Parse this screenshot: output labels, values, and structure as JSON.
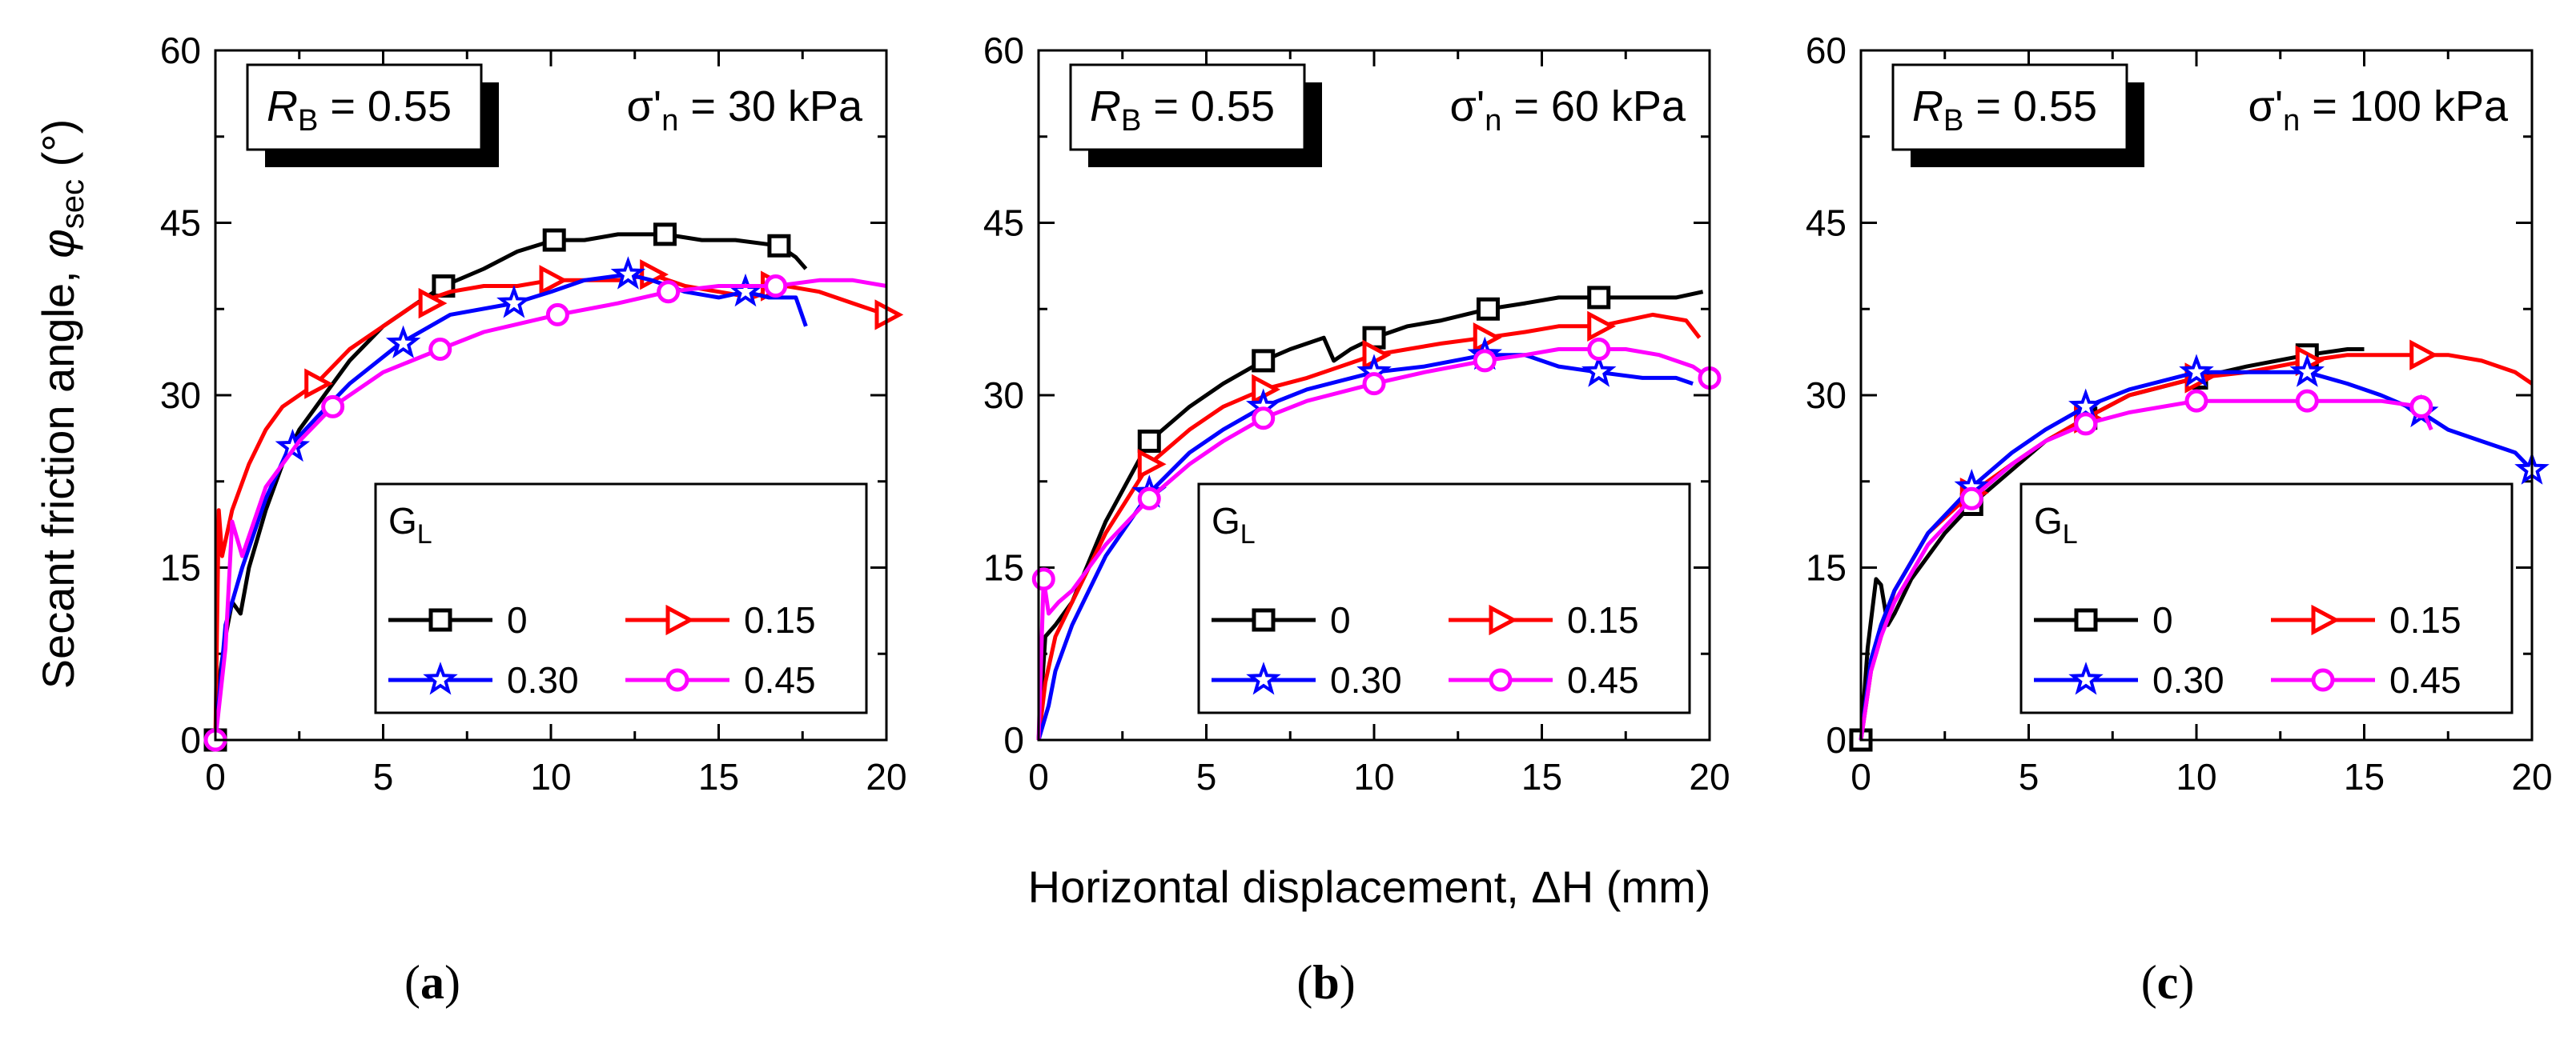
{
  "figure": {
    "xlabel": "Horizontal displacement, ΔH (mm)",
    "ylabel": {
      "prefix": "Secant friction angle, ",
      "symbol": "φ",
      "subscript": "sec",
      "unit": " (°)"
    }
  },
  "chart_data": [
    {
      "type": "line",
      "panel_label": "(a)",
      "rb_label": {
        "symbol": "R",
        "sub": "B",
        "value": " = 0.55"
      },
      "sigma_label": {
        "symbol": "σ'",
        "sub": "n",
        "value": " = 30 kPa"
      },
      "xlim": [
        0,
        20
      ],
      "ylim": [
        0,
        60
      ],
      "xticks": [
        0,
        5,
        10,
        15,
        20
      ],
      "yticks": [
        0,
        15,
        30,
        45,
        60
      ],
      "legend": {
        "title": "G",
        "title_sub": "L",
        "placement": "lower-right"
      },
      "series": [
        {
          "name": "0",
          "marker": "square",
          "color": "#000000",
          "x": [
            0,
            0.15,
            0.3,
            0.5,
            0.75,
            1.0,
            1.5,
            2.0,
            2.5,
            3.0,
            3.5,
            4.0,
            5.0,
            6.0,
            6.8,
            8.0,
            9.0,
            10.1,
            11.0,
            12.0,
            13.4,
            14.5,
            15.5,
            16.8,
            17.3,
            17.6
          ],
          "y": [
            0,
            6,
            9,
            12,
            11,
            15,
            20,
            24,
            27,
            29,
            31,
            33,
            36,
            38,
            39.5,
            41,
            42.5,
            43.5,
            43.5,
            44,
            44,
            43.5,
            43.5,
            43,
            42,
            41
          ],
          "markers_x": [
            0,
            6.8,
            10.1,
            13.4,
            16.8
          ],
          "markers_y": [
            0,
            39.5,
            43.5,
            44,
            43
          ]
        },
        {
          "name": "0.15",
          "marker": "triangle-right",
          "color": "#ff0000",
          "x": [
            0,
            0.1,
            0.2,
            0.5,
            1.0,
            1.5,
            2.0,
            3.0,
            4.0,
            5.0,
            6.0,
            7.0,
            8.0,
            9.0,
            10.0,
            11.0,
            12.0,
            13.0,
            14.0,
            15.0,
            16.0,
            17.0,
            18.0,
            19.0,
            20.0
          ],
          "y": [
            0,
            20,
            16,
            20,
            24,
            27,
            29,
            31,
            34,
            36,
            38,
            39,
            39.5,
            39.5,
            40,
            40,
            40,
            40.5,
            39.5,
            39,
            38.5,
            39.5,
            39,
            38,
            37
          ],
          "markers_x": [
            3.0,
            6.4,
            10.0,
            13.0,
            16.6,
            20.0
          ],
          "markers_y": [
            31,
            38,
            40,
            40.5,
            39.5,
            37
          ]
        },
        {
          "name": "0.30",
          "marker": "star",
          "color": "#0000ff",
          "x": [
            0,
            0.3,
            0.8,
            1.5,
            2.2,
            3.0,
            4.0,
            5.5,
            7.0,
            8.9,
            10.0,
            11.0,
            12.3,
            13.0,
            14.0,
            15.0,
            15.8,
            16.5,
            17.3,
            17.6
          ],
          "y": [
            0,
            10,
            15,
            21,
            25.5,
            28,
            31,
            34.5,
            37,
            38,
            39,
            40,
            40.5,
            40,
            39,
            38.5,
            39,
            38.5,
            38.5,
            36
          ],
          "markers_x": [
            2.3,
            5.6,
            8.9,
            12.3,
            15.8
          ],
          "markers_y": [
            25.5,
            34.5,
            38,
            40.5,
            39
          ]
        },
        {
          "name": "0.45",
          "marker": "circle",
          "color": "#ff00ff",
          "x": [
            0,
            0.3,
            0.5,
            0.8,
            1.5,
            2.5,
            3.5,
            5.0,
            6.7,
            8.0,
            10.2,
            12.0,
            13.5,
            15.0,
            16.7,
            18.0,
            19.0,
            20.0
          ],
          "y": [
            0,
            8,
            19,
            16,
            22,
            26,
            29,
            32,
            34,
            35.5,
            37,
            38,
            39,
            39.5,
            39.5,
            40,
            40,
            39.5
          ],
          "markers_x": [
            0,
            3.5,
            6.7,
            10.2,
            13.5,
            16.7
          ],
          "markers_y": [
            0,
            29,
            34,
            37,
            39,
            39.5
          ]
        }
      ]
    },
    {
      "type": "line",
      "panel_label": "(b)",
      "rb_label": {
        "symbol": "R",
        "sub": "B",
        "value": " = 0.55"
      },
      "sigma_label": {
        "symbol": "σ'",
        "sub": "n",
        "value": " = 60 kPa"
      },
      "xlim": [
        0,
        20
      ],
      "ylim": [
        0,
        60
      ],
      "xticks": [
        0,
        5,
        10,
        15,
        20
      ],
      "yticks": [
        0,
        15,
        30,
        45,
        60
      ],
      "legend": {
        "title": "G",
        "title_sub": "L",
        "placement": "lower-right"
      },
      "series": [
        {
          "name": "0",
          "marker": "square",
          "color": "#000000",
          "x": [
            0,
            0.2,
            0.5,
            1.0,
            2.0,
            3.3,
            4.5,
            5.5,
            6.7,
            7.5,
            8.5,
            8.8,
            9.3,
            10.0,
            11.0,
            12.0,
            13.4,
            14.5,
            15.5,
            16.7,
            18.0,
            19.0,
            19.8
          ],
          "y": [
            0,
            9,
            10,
            12,
            19,
            26,
            29,
            31,
            33,
            34,
            35,
            33,
            34,
            35,
            36,
            36.5,
            37.5,
            38,
            38.5,
            38.5,
            38.5,
            38.5,
            39
          ],
          "markers_x": [
            3.3,
            6.7,
            10.0,
            13.4,
            16.7
          ],
          "markers_y": [
            26,
            33,
            35,
            37.5,
            38.5
          ]
        },
        {
          "name": "0.15",
          "marker": "triangle-right",
          "color": "#ff0000",
          "x": [
            0,
            0.2,
            0.5,
            1.0,
            2.0,
            3.3,
            4.5,
            5.5,
            6.7,
            8.0,
            10.0,
            11.0,
            12.0,
            13.3,
            14.5,
            15.5,
            16.7,
            17.5,
            18.3,
            19.3,
            19.7
          ],
          "y": [
            0,
            5,
            9,
            12,
            18,
            24,
            27,
            29,
            30.5,
            31.5,
            33.5,
            34,
            34.5,
            35,
            35.5,
            36,
            36,
            36.5,
            37,
            36.5,
            35
          ],
          "markers_x": [
            3.3,
            6.7,
            10.0,
            13.3,
            16.7
          ],
          "markers_y": [
            24,
            30.5,
            33.5,
            35,
            36
          ]
        },
        {
          "name": "0.30",
          "marker": "star",
          "color": "#0000ff",
          "x": [
            0,
            0.3,
            0.5,
            1.0,
            2.0,
            3.3,
            4.5,
            5.5,
            6.7,
            8.0,
            10.0,
            11.5,
            13.3,
            14.5,
            15.5,
            16.7,
            18.0,
            19.0,
            19.5
          ],
          "y": [
            0,
            3,
            6,
            10,
            16,
            21.5,
            25,
            27,
            29,
            30.5,
            32,
            32.5,
            33.5,
            33.5,
            32.5,
            32,
            31.5,
            31.5,
            31
          ],
          "markers_x": [
            3.3,
            6.7,
            10.0,
            13.3,
            16.7
          ],
          "markers_y": [
            21.5,
            29,
            32,
            33.5,
            32
          ]
        },
        {
          "name": "0.45",
          "marker": "circle",
          "color": "#ff00ff",
          "x": [
            0,
            0.15,
            0.3,
            0.6,
            1.0,
            2.0,
            3.3,
            4.5,
            5.5,
            6.7,
            8.0,
            10.0,
            11.5,
            13.3,
            14.5,
            15.5,
            16.7,
            17.5,
            18.5,
            19.5,
            20.0
          ],
          "y": [
            0,
            14,
            11,
            12,
            13,
            17,
            21,
            24,
            26,
            28,
            29.5,
            31,
            32,
            33,
            33.5,
            34,
            34,
            34,
            33.5,
            32.5,
            31.5
          ],
          "markers_x": [
            0.15,
            3.3,
            6.7,
            10.0,
            13.3,
            16.7,
            20.0
          ],
          "markers_y": [
            14,
            21,
            28,
            31,
            33,
            34,
            31.5
          ]
        }
      ]
    },
    {
      "type": "line",
      "panel_label": "(c)",
      "rb_label": {
        "symbol": "R",
        "sub": "B",
        "value": " = 0.55"
      },
      "sigma_label": {
        "symbol": "σ'",
        "sub": "n",
        "value": " = 100 kPa"
      },
      "xlim": [
        0,
        20
      ],
      "ylim": [
        0,
        60
      ],
      "xticks": [
        0,
        5,
        10,
        15,
        20
      ],
      "yticks": [
        0,
        15,
        30,
        45,
        60
      ],
      "legend": {
        "title": "G",
        "title_sub": "L",
        "placement": "lower-right"
      },
      "series": [
        {
          "name": "0",
          "marker": "square",
          "color": "#000000",
          "x": [
            0,
            0.2,
            0.45,
            0.6,
            0.8,
            1.0,
            1.5,
            2.5,
            3.3,
            4.5,
            5.5,
            6.7,
            8.0,
            10.0,
            11.5,
            13.3,
            14.5,
            15.0
          ],
          "y": [
            0,
            8,
            14,
            13.5,
            10,
            11,
            14,
            18,
            20.5,
            23.5,
            26,
            28,
            30,
            31.5,
            32.5,
            33.5,
            34,
            34
          ],
          "markers_x": [
            0,
            3.3,
            6.7,
            10.0,
            13.3
          ],
          "markers_y": [
            0,
            20.5,
            28,
            31.5,
            33.5
          ]
        },
        {
          "name": "0.15",
          "marker": "triangle-right",
          "color": "#ff0000",
          "x": [
            0,
            0.3,
            0.6,
            1.0,
            2.0,
            3.3,
            4.5,
            5.5,
            6.7,
            8.0,
            10.0,
            11.5,
            13.3,
            14.5,
            15.5,
            16.7,
            17.5,
            18.5,
            19.5,
            20.0
          ],
          "y": [
            0,
            6,
            9,
            13,
            18,
            21.5,
            24,
            26,
            28,
            30,
            31.5,
            32,
            33,
            33.5,
            33.5,
            33.5,
            33.5,
            33,
            32,
            31
          ],
          "markers_x": [
            3.3,
            6.7,
            10.0,
            13.3,
            16.7
          ],
          "markers_y": [
            21.5,
            28,
            31.5,
            33,
            33.5
          ]
        },
        {
          "name": "0.30",
          "marker": "star",
          "color": "#0000ff",
          "x": [
            0,
            0.3,
            0.6,
            1.0,
            2.0,
            3.3,
            4.5,
            5.5,
            6.7,
            8.0,
            10.0,
            11.5,
            13.3,
            14.5,
            15.5,
            16.7,
            17.5,
            18.5,
            19.5,
            20.0
          ],
          "y": [
            0,
            7,
            10,
            13,
            18,
            22,
            25,
            27,
            29,
            30.5,
            32,
            32,
            32,
            31,
            30,
            28.5,
            27,
            26,
            25,
            23.5
          ],
          "markers_x": [
            3.3,
            6.7,
            10.0,
            13.3,
            16.7,
            20.0
          ],
          "markers_y": [
            22,
            29,
            32,
            32,
            28.5,
            23.5
          ]
        },
        {
          "name": "0.45",
          "marker": "circle",
          "color": "#ff00ff",
          "x": [
            0,
            0.3,
            0.6,
            1.0,
            2.0,
            3.3,
            4.5,
            5.5,
            6.7,
            8.0,
            10.0,
            11.5,
            13.3,
            14.5,
            15.5,
            16.7,
            17.0
          ],
          "y": [
            0,
            6,
            9,
            12,
            17,
            21,
            24,
            26,
            27.5,
            28.5,
            29.5,
            29.5,
            29.5,
            29.5,
            29.5,
            29,
            27
          ],
          "markers_x": [
            3.3,
            6.7,
            10.0,
            13.3,
            16.7
          ],
          "markers_y": [
            21,
            27.5,
            29.5,
            29.5,
            29
          ]
        }
      ]
    }
  ]
}
